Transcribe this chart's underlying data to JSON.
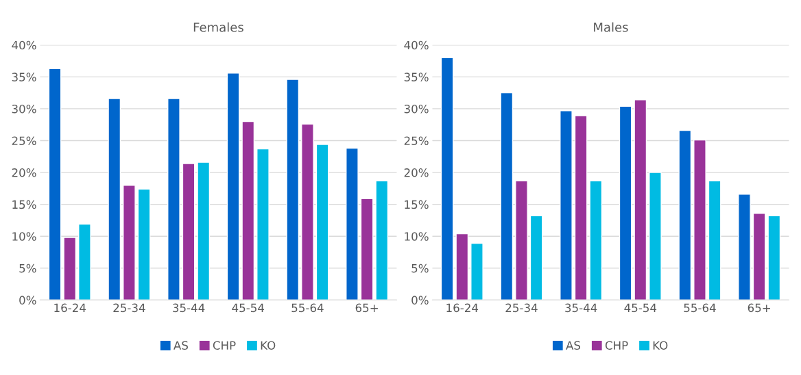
{
  "chart_data": [
    {
      "type": "bar",
      "title": "Females",
      "categories": [
        "16-24",
        "25-34",
        "35-44",
        "45-54",
        "55-64",
        "65+"
      ],
      "series": [
        {
          "name": "AS",
          "color": "#0066cc",
          "values": [
            36.3,
            31.6,
            31.6,
            35.6,
            34.6,
            23.8
          ]
        },
        {
          "name": "CHP",
          "color": "#993399",
          "values": [
            9.8,
            18.0,
            21.4,
            28.0,
            27.6,
            15.9
          ]
        },
        {
          "name": "KO",
          "color": "#00bbe3",
          "values": [
            11.9,
            17.4,
            21.6,
            23.7,
            24.4,
            18.7
          ]
        }
      ],
      "ylim": [
        0,
        40
      ],
      "yticks": [
        {
          "value": 0,
          "label": "0%"
        },
        {
          "value": 5,
          "label": "5%"
        },
        {
          "value": 10,
          "label": "10%"
        },
        {
          "value": 15,
          "label": "15%"
        },
        {
          "value": 20,
          "label": "20%"
        },
        {
          "value": 25,
          "label": "25%"
        },
        {
          "value": 30,
          "label": "30%"
        },
        {
          "value": 35,
          "label": "35%"
        },
        {
          "value": 40,
          "label": "40%"
        }
      ],
      "grid": "y",
      "legend": "bottom"
    },
    {
      "type": "bar",
      "title": "Males",
      "categories": [
        "16-24",
        "25-34",
        "35-44",
        "45-54",
        "55-64",
        "65+"
      ],
      "series": [
        {
          "name": "AS",
          "color": "#0066cc",
          "values": [
            38.0,
            32.5,
            29.7,
            30.4,
            26.6,
            16.6
          ]
        },
        {
          "name": "CHP",
          "color": "#993399",
          "values": [
            10.4,
            18.7,
            28.9,
            31.4,
            25.1,
            13.6
          ]
        },
        {
          "name": "KO",
          "color": "#00bbe3",
          "values": [
            8.9,
            13.2,
            18.7,
            20.0,
            18.7,
            13.2
          ]
        }
      ],
      "ylim": [
        0,
        40
      ],
      "yticks": [
        {
          "value": 0,
          "label": "0%"
        },
        {
          "value": 5,
          "label": "5%"
        },
        {
          "value": 10,
          "label": "10%"
        },
        {
          "value": 15,
          "label": "15%"
        },
        {
          "value": 20,
          "label": "20%"
        },
        {
          "value": 25,
          "label": "25%"
        },
        {
          "value": 30,
          "label": "30%"
        },
        {
          "value": 35,
          "label": "35%"
        },
        {
          "value": 40,
          "label": "40%"
        }
      ],
      "grid": "y",
      "legend": "bottom"
    }
  ]
}
